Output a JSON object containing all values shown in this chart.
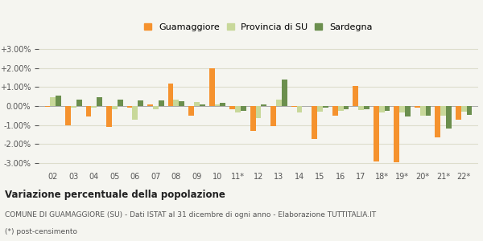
{
  "years": [
    "02",
    "03",
    "04",
    "05",
    "06",
    "07",
    "08",
    "09",
    "10",
    "11*",
    "12",
    "13",
    "14",
    "15",
    "16",
    "17",
    "18*",
    "19*",
    "20*",
    "21*",
    "22*"
  ],
  "guamaggiore": [
    -0.05,
    -1.0,
    -0.55,
    -1.1,
    -0.1,
    0.1,
    1.2,
    -0.5,
    2.0,
    -0.15,
    -1.3,
    -1.05,
    -0.05,
    -1.75,
    -0.5,
    1.05,
    -2.9,
    -2.95,
    -0.1,
    -1.65,
    -0.7
  ],
  "provincia": [
    0.45,
    -0.1,
    -0.1,
    -0.15,
    -0.7,
    -0.15,
    0.35,
    0.2,
    0.1,
    -0.35,
    -0.65,
    0.35,
    -0.35,
    -0.3,
    -0.25,
    -0.2,
    -0.35,
    -0.35,
    -0.5,
    -0.5,
    -0.3
  ],
  "sardegna": [
    0.55,
    0.35,
    0.45,
    0.35,
    0.3,
    0.3,
    0.25,
    0.1,
    0.15,
    -0.25,
    0.1,
    1.4,
    -0.0,
    -0.1,
    -0.15,
    -0.15,
    -0.25,
    -0.55,
    -0.5,
    -1.2,
    -0.45
  ],
  "color_guamaggiore": "#f5922e",
  "color_provincia": "#c8d89a",
  "color_sardegna": "#6b8f4e",
  "bg_color": "#f5f5f0",
  "grid_color": "#ddddcc",
  "title_bold": "Variazione percentuale della popolazione",
  "subtitle1": "COMUNE DI GUAMAGGIORE (SU) - Dati ISTAT al 31 dicembre di ogni anno - Elaborazione TUTTITALIA.IT",
  "subtitle2": "(*) post-censimento",
  "legend_labels": [
    "Guamaggiore",
    "Provincia di SU",
    "Sardegna"
  ],
  "ylim": [
    -3.0,
    3.0
  ],
  "yticks": [
    -3.0,
    -2.0,
    -1.0,
    0.0,
    1.0,
    2.0,
    3.0
  ]
}
